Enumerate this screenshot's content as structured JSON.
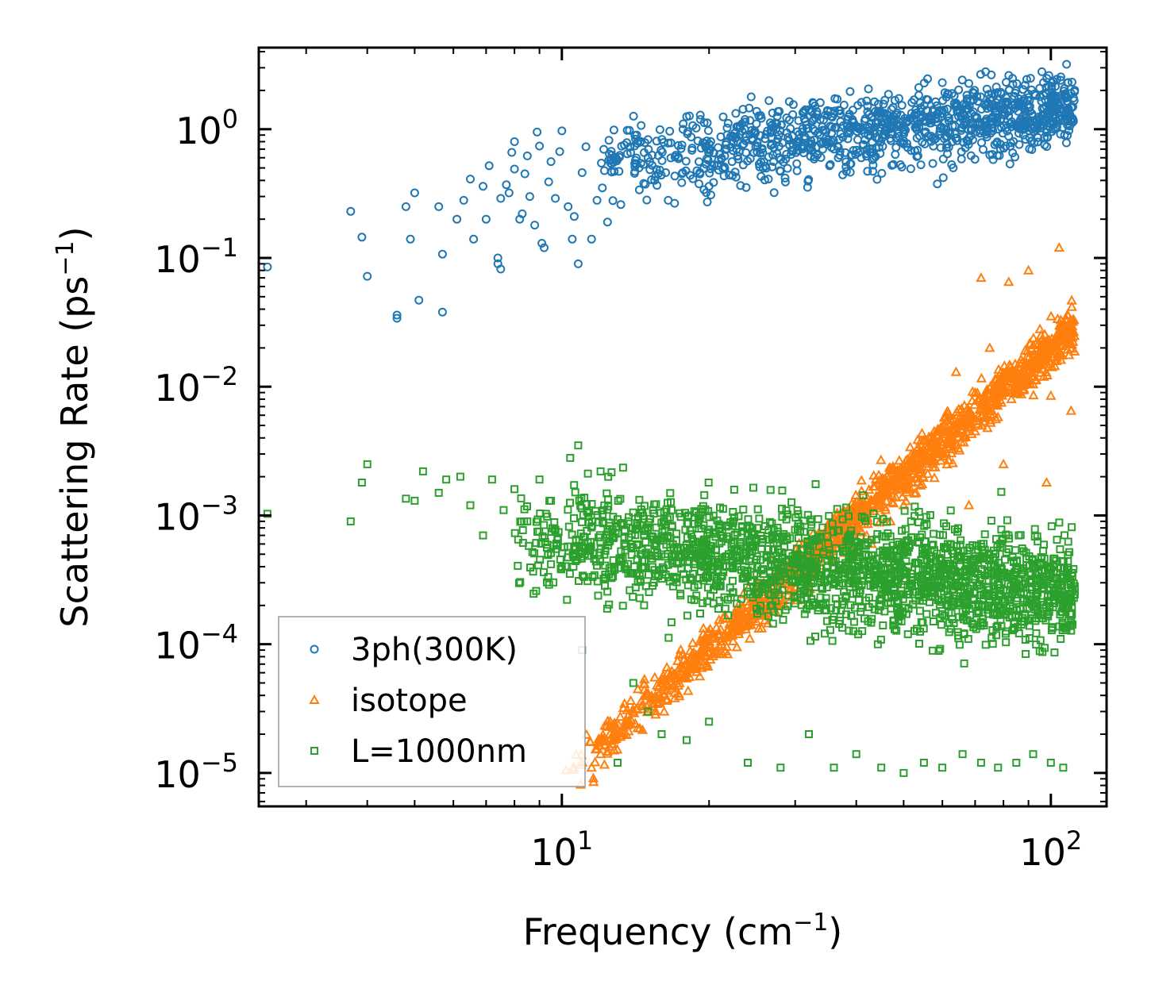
{
  "chart_data": {
    "type": "scatter",
    "xscale": "log",
    "yscale": "log",
    "xlim": [
      2.4,
      130
    ],
    "ylim": [
      5.5e-06,
      4.3
    ],
    "xlabel": {
      "text": "Frequency (cm",
      "sup": "−1",
      "close": ")"
    },
    "ylabel": {
      "text": "Scattering Rate (ps",
      "sup": "−1",
      "close": ")"
    },
    "x_tick_labels": [
      {
        "value": 10,
        "base": "10",
        "exp": "1"
      },
      {
        "value": 100,
        "base": "10",
        "exp": "2"
      }
    ],
    "y_tick_labels": [
      {
        "value": 1,
        "base": "10",
        "exp": "0"
      },
      {
        "value": 0.1,
        "base": "10",
        "exp": "−1"
      },
      {
        "value": 0.01,
        "base": "10",
        "exp": "−2"
      },
      {
        "value": 0.001,
        "base": "10",
        "exp": "−3"
      },
      {
        "value": 0.0001,
        "base": "10",
        "exp": "−4"
      },
      {
        "value": 1e-05,
        "base": "10",
        "exp": "−5"
      }
    ],
    "legend": {
      "location": "lower-left"
    },
    "series": [
      {
        "name": "3ph(300K)",
        "marker": "circle",
        "color": "#1f77b4",
        "points": [
          [
            2.5,
            0.085
          ],
          [
            3.7,
            0.23
          ],
          [
            3.9,
            0.145
          ],
          [
            4.0,
            0.072
          ],
          [
            4.6,
            0.036
          ],
          [
            4.6,
            0.034
          ],
          [
            4.8,
            0.25
          ],
          [
            4.9,
            0.14
          ],
          [
            5.0,
            0.32
          ],
          [
            5.1,
            0.047
          ],
          [
            5.6,
            0.25
          ],
          [
            5.7,
            0.038
          ],
          [
            5.7,
            0.107
          ],
          [
            6.1,
            0.2
          ],
          [
            6.3,
            0.28
          ],
          [
            6.5,
            0.41
          ],
          [
            6.6,
            0.14
          ],
          [
            6.9,
            0.36
          ],
          [
            7.0,
            0.2
          ],
          [
            7.1,
            0.52
          ],
          [
            7.4,
            0.1
          ],
          [
            7.4,
            0.09
          ],
          [
            7.5,
            0.082
          ],
          [
            7.5,
            0.29
          ],
          [
            7.7,
            0.37
          ],
          [
            7.8,
            0.32
          ],
          [
            7.9,
            0.66
          ],
          [
            8.0,
            0.49
          ],
          [
            8.0,
            0.8
          ],
          [
            8.2,
            0.2
          ],
          [
            8.3,
            0.22
          ],
          [
            8.4,
            0.45
          ],
          [
            8.5,
            0.62
          ],
          [
            8.6,
            0.3
          ],
          [
            8.8,
            0.18
          ],
          [
            8.9,
            0.95
          ],
          [
            9.0,
            0.74
          ],
          [
            9.1,
            0.13
          ],
          [
            9.2,
            0.12
          ],
          [
            9.4,
            0.39
          ],
          [
            9.5,
            0.56
          ],
          [
            9.7,
            0.29
          ],
          [
            9.9,
            0.67
          ],
          [
            10.0,
            0.97
          ],
          [
            10.3,
            0.25
          ],
          [
            10.5,
            0.14
          ],
          [
            10.6,
            0.21
          ],
          [
            10.8,
            0.09
          ],
          [
            11.0,
            0.46
          ],
          [
            11.2,
            0.73
          ],
          [
            11.5,
            0.14
          ],
          [
            11.8,
            0.28
          ],
          [
            12.1,
            0.35
          ],
          [
            12.4,
            0.19
          ],
          [
            12.8,
            0.47
          ],
          [
            13.2,
            0.26
          ],
          [
            13.6,
            0.98
          ],
          [
            14.2,
            0.54
          ],
          [
            15.0,
            0.83
          ],
          [
            16.5,
            0.28
          ],
          [
            18.0,
            1.25
          ],
          [
            20.0,
            0.36
          ],
          [
            22.0,
            0.44
          ],
          [
            25.0,
            1.1
          ],
          [
            28.0,
            0.58
          ],
          [
            32.0,
            1.42
          ],
          [
            36.0,
            0.7
          ],
          [
            42.0,
            1.66
          ],
          [
            50.0,
            0.95
          ],
          [
            60.0,
            2.3
          ],
          [
            66.0,
            1.2
          ],
          [
            74.0,
            2.05
          ],
          [
            80.0,
            1.3
          ],
          [
            90.0,
            1.12
          ],
          [
            100.0,
            1.6
          ],
          [
            110.0,
            1.9
          ]
        ],
        "cloud": {
          "x_from": 12.0,
          "x_to": 112.0,
          "y_start": 0.55,
          "y_end": 1.5,
          "spread": 0.42,
          "count": 1100
        }
      },
      {
        "name": "isotope",
        "marker": "triangle",
        "color": "#ff7f0e",
        "points": [
          [
            10.2,
            1.05e-05
          ],
          [
            10.6,
            1.1e-05
          ],
          [
            11.0,
            1.2e-05
          ],
          [
            11.5,
            1.1e-05
          ],
          [
            12.0,
            1.4e-05
          ],
          [
            12.5,
            1.6e-05
          ],
          [
            13.0,
            1.9e-05
          ],
          [
            13.5,
            2.4e-05
          ],
          [
            14.0,
            3e-05
          ],
          [
            15.0,
            4e-05
          ],
          [
            16.0,
            5e-05
          ],
          [
            17.0,
            5.5e-05
          ],
          [
            18.0,
            6e-05
          ],
          [
            19.0,
            8e-05
          ],
          [
            20.0,
            0.0001
          ],
          [
            22.0,
            0.00012
          ],
          [
            25.0,
            0.00015
          ],
          [
            28.0,
            0.0002
          ],
          [
            32.0,
            0.00025
          ],
          [
            38.0,
            0.0004
          ],
          [
            43.0,
            0.0006
          ],
          [
            47.0,
            0.0009
          ],
          [
            50.0,
            0.0012
          ],
          [
            53.0,
            0.0015
          ],
          [
            56.0,
            0.0021
          ],
          [
            58.0,
            0.003
          ],
          [
            62.0,
            0.006
          ],
          [
            64.0,
            0.013
          ],
          [
            66.0,
            0.005
          ],
          [
            68.0,
            0.0012
          ],
          [
            70.0,
            0.0045
          ],
          [
            72.0,
            0.07
          ],
          [
            75.0,
            0.02
          ],
          [
            78.0,
            0.0075
          ],
          [
            80.0,
            0.0025
          ],
          [
            82.0,
            0.065
          ],
          [
            86.0,
            0.012
          ],
          [
            90.0,
            0.08
          ],
          [
            95.0,
            0.028
          ],
          [
            98.0,
            0.0018
          ],
          [
            100.0,
            0.0085
          ],
          [
            104.0,
            0.12
          ],
          [
            107.0,
            0.03
          ],
          [
            110.0,
            0.0065
          ]
        ],
        "cloud": {
          "x_from": 10.5,
          "x_to": 112.0,
          "y_start": 1.1e-05,
          "y_end": 0.03,
          "spread": 0.25,
          "count": 1400
        }
      },
      {
        "name": "L=1000nm",
        "marker": "square",
        "color": "#2ca02c",
        "points": [
          [
            2.5,
            0.00103
          ],
          [
            3.7,
            0.0009
          ],
          [
            3.9,
            0.0018
          ],
          [
            4.0,
            0.0025
          ],
          [
            4.8,
            0.00135
          ],
          [
            5.0,
            0.0013
          ],
          [
            5.2,
            0.0022
          ],
          [
            5.6,
            0.0015
          ],
          [
            5.8,
            0.0019
          ],
          [
            6.2,
            0.002
          ],
          [
            6.5,
            0.0012
          ],
          [
            6.9,
            0.0007
          ],
          [
            7.2,
            0.0019
          ],
          [
            7.6,
            0.0011
          ],
          [
            8.0,
            0.0016
          ],
          [
            8.5,
            0.0009
          ],
          [
            9.0,
            0.0019
          ],
          [
            9.5,
            0.0013
          ],
          [
            10.0,
            0.0004
          ],
          [
            10.4,
            0.0028
          ],
          [
            10.8,
            0.0035
          ],
          [
            11.0,
            9e-05
          ],
          [
            12.0,
            0.0022
          ],
          [
            13.0,
            1.2e-05
          ],
          [
            14.0,
            5e-05
          ],
          [
            15.0,
            3e-05
          ],
          [
            16.0,
            2e-05
          ],
          [
            18.0,
            1.8e-05
          ],
          [
            20.0,
            2.5e-05
          ],
          [
            24.0,
            1.2e-05
          ],
          [
            28.0,
            1.1e-05
          ],
          [
            32.0,
            2e-05
          ],
          [
            36.0,
            1.1e-05
          ],
          [
            40.0,
            1.4e-05
          ],
          [
            45.0,
            1.1e-05
          ],
          [
            50.0,
            1e-05
          ],
          [
            55.0,
            1.2e-05
          ],
          [
            60.0,
            1.1e-05
          ],
          [
            66.0,
            1.4e-05
          ],
          [
            72.0,
            1.2e-05
          ],
          [
            78.0,
            1.1e-05
          ],
          [
            85.0,
            1.2e-05
          ],
          [
            92.0,
            1.4e-05
          ],
          [
            100.0,
            1.2e-05
          ],
          [
            106.0,
            1.1e-05
          ]
        ],
        "cloud": {
          "x_from": 8.0,
          "x_to": 112.0,
          "y_start": 0.0007,
          "y_end": 0.00025,
          "spread": 0.6,
          "count": 2000
        }
      }
    ]
  }
}
